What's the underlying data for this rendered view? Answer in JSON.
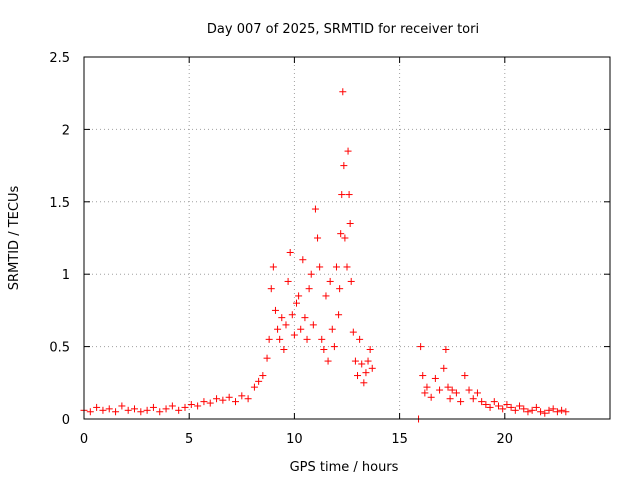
{
  "chart_data": {
    "type": "scatter",
    "title": "Day 007 of 2025, SRMTID for receiver tori",
    "xlabel": "GPS time / hours",
    "ylabel": "SRMTID / TECUs",
    "xlim": [
      0,
      25
    ],
    "ylim": [
      0,
      2.5
    ],
    "xticks": [
      0,
      5,
      10,
      15,
      20
    ],
    "xtick_labels": [
      "0",
      "5",
      "10",
      "15",
      "20"
    ],
    "yticks": [
      0,
      0.5,
      1,
      1.5,
      2,
      2.5
    ],
    "ytick_labels": [
      "0",
      "0.5",
      "1",
      "1.5",
      "2",
      "2.5"
    ],
    "grid": true,
    "marker": "+",
    "color": "#ff0000",
    "series": [
      {
        "name": "SRMTID",
        "x": [
          0.0,
          0.3,
          0.6,
          0.9,
          1.2,
          1.5,
          1.8,
          2.1,
          2.4,
          2.7,
          3.0,
          3.3,
          3.6,
          3.9,
          4.2,
          4.5,
          4.8,
          5.1,
          5.4,
          5.7,
          6.0,
          6.3,
          6.6,
          6.9,
          7.2,
          7.5,
          7.8,
          8.1,
          8.3,
          8.5,
          8.7,
          8.8,
          8.9,
          9.0,
          9.1,
          9.2,
          9.3,
          9.4,
          9.5,
          9.6,
          9.7,
          9.8,
          9.9,
          10.0,
          10.1,
          10.2,
          10.3,
          10.4,
          10.5,
          10.6,
          10.7,
          10.8,
          10.9,
          11.0,
          11.1,
          11.2,
          11.3,
          11.4,
          11.5,
          11.6,
          11.7,
          11.8,
          11.9,
          12.0,
          12.1,
          12.15,
          12.2,
          12.25,
          12.3,
          12.35,
          12.4,
          12.5,
          12.55,
          12.6,
          12.65,
          12.7,
          12.8,
          12.9,
          13.0,
          13.1,
          13.2,
          13.3,
          13.4,
          13.5,
          13.6,
          13.7,
          15.9,
          16.0,
          16.1,
          16.2,
          16.3,
          16.5,
          16.7,
          16.9,
          17.1,
          17.2,
          17.3,
          17.4,
          17.5,
          17.7,
          17.9,
          18.1,
          18.3,
          18.5,
          18.7,
          18.9,
          19.1,
          19.3,
          19.5,
          19.7,
          19.9,
          20.1,
          20.3,
          20.5,
          20.7,
          20.9,
          21.1,
          21.3,
          21.5,
          21.7,
          21.9,
          22.1,
          22.3,
          22.5,
          22.7,
          22.9
        ],
        "y": [
          0.06,
          0.05,
          0.08,
          0.06,
          0.07,
          0.05,
          0.09,
          0.06,
          0.07,
          0.05,
          0.06,
          0.08,
          0.05,
          0.07,
          0.09,
          0.06,
          0.08,
          0.1,
          0.09,
          0.12,
          0.11,
          0.14,
          0.13,
          0.15,
          0.12,
          0.16,
          0.14,
          0.22,
          0.26,
          0.3,
          0.42,
          0.55,
          0.9,
          1.05,
          0.75,
          0.62,
          0.55,
          0.7,
          0.48,
          0.65,
          0.95,
          1.15,
          0.72,
          0.58,
          0.8,
          0.85,
          0.62,
          1.1,
          0.7,
          0.55,
          0.9,
          1.0,
          0.65,
          1.45,
          1.25,
          1.05,
          0.55,
          0.48,
          0.85,
          0.4,
          0.95,
          0.62,
          0.5,
          1.05,
          0.72,
          0.9,
          1.28,
          1.55,
          2.26,
          1.75,
          1.25,
          1.05,
          1.85,
          1.55,
          1.35,
          0.95,
          0.6,
          0.4,
          0.3,
          0.55,
          0.38,
          0.25,
          0.32,
          0.4,
          0.48,
          0.35,
          0.0,
          0.5,
          0.3,
          0.18,
          0.22,
          0.15,
          0.28,
          0.2,
          0.35,
          0.48,
          0.22,
          0.14,
          0.2,
          0.18,
          0.12,
          0.3,
          0.2,
          0.14,
          0.18,
          0.12,
          0.1,
          0.08,
          0.12,
          0.09,
          0.07,
          0.1,
          0.08,
          0.06,
          0.09,
          0.07,
          0.05,
          0.06,
          0.08,
          0.05,
          0.04,
          0.06,
          0.07,
          0.05,
          0.06,
          0.05
        ]
      }
    ]
  }
}
